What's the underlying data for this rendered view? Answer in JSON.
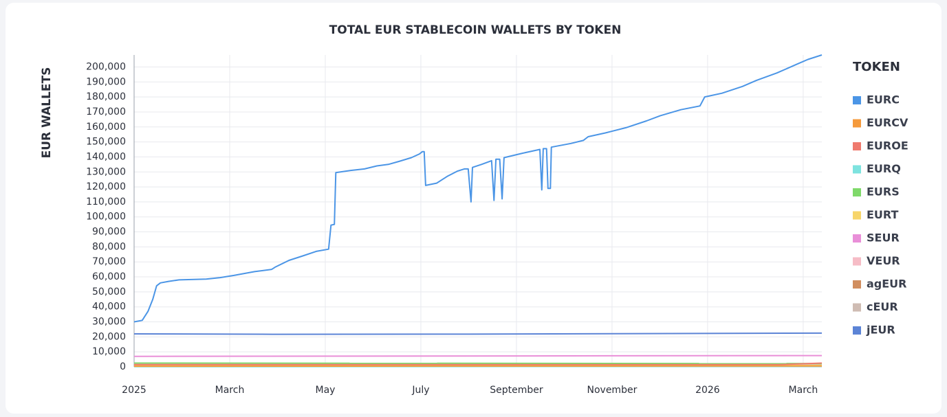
{
  "chart_data": {
    "type": "line",
    "title": "TOTAL EUR STABLECOIN WALLETS BY TOKEN",
    "y_label": "EUR WALLETS",
    "legend_title": "TOKEN",
    "legend": "right",
    "grid": true,
    "xlim": [
      0,
      14.39
    ],
    "xticks": [
      {
        "value": 0,
        "label": "2025"
      },
      {
        "value": 2,
        "label": "March"
      },
      {
        "value": 4,
        "label": "May"
      },
      {
        "value": 6,
        "label": "July"
      },
      {
        "value": 8,
        "label": "September"
      },
      {
        "value": 10,
        "label": "November"
      },
      {
        "value": 12,
        "label": "2026"
      },
      {
        "value": 14,
        "label": "March"
      }
    ],
    "ylim": [
      0,
      208000
    ],
    "yticks": [
      0,
      {
        "value": 10000,
        "label": "10,000"
      },
      {
        "value": 20000,
        "label": "20,000"
      },
      {
        "value": 30000,
        "label": "30,000"
      },
      {
        "value": 40000,
        "label": "40,000"
      },
      {
        "value": 50000,
        "label": "50,000"
      },
      {
        "value": 60000,
        "label": "60,000"
      },
      {
        "value": 70000,
        "label": "70,000"
      },
      {
        "value": 80000,
        "label": "80,000"
      },
      {
        "value": 90000,
        "label": "90,000"
      },
      {
        "value": 100000,
        "label": "100,000"
      },
      {
        "value": 110000,
        "label": "110,000"
      },
      {
        "value": 120000,
        "label": "120,000"
      },
      {
        "value": 130000,
        "label": "130,000"
      },
      {
        "value": 140000,
        "label": "140,000"
      },
      {
        "value": 150000,
        "label": "150,000"
      },
      {
        "value": 160000,
        "label": "160,000"
      },
      {
        "value": 170000,
        "label": "170,000"
      },
      {
        "value": 180000,
        "label": "180,000"
      },
      {
        "value": 190000,
        "label": "190,000"
      },
      {
        "value": 200000,
        "label": "200,000"
      }
    ],
    "series": [
      {
        "name": "EURC",
        "color": "#4b95e6",
        "x": [
          0,
          0.17,
          0.29,
          0.39,
          0.47,
          0.55,
          0.72,
          0.94,
          1.51,
          1.8,
          2.09,
          2.52,
          2.88,
          2.95,
          3.24,
          3.53,
          3.81,
          4.07,
          4.12,
          4.19,
          4.22,
          4.53,
          4.82,
          5.08,
          5.32,
          5.54,
          5.8,
          5.97,
          6.03,
          6.07,
          6.1,
          6.33,
          6.55,
          6.76,
          6.91,
          6.99,
          7.05,
          7.08,
          7.27,
          7.48,
          7.53,
          7.57,
          7.65,
          7.7,
          7.74,
          8.13,
          8.49,
          8.53,
          8.56,
          8.63,
          8.66,
          8.71,
          8.73,
          9.14,
          9.4,
          9.5,
          9.86,
          10.29,
          10.72,
          11.01,
          11.44,
          11.84,
          11.94,
          12.3,
          12.73,
          13.02,
          13.45,
          13.88,
          14.1,
          14.39
        ],
        "values": [
          30000,
          31000,
          37000,
          45000,
          54000,
          56000,
          57000,
          58000,
          58500,
          59500,
          61000,
          63500,
          65000,
          66500,
          71000,
          74000,
          77000,
          78500,
          94500,
          95000,
          129500,
          131000,
          132000,
          134000,
          135000,
          137000,
          139500,
          142000,
          143500,
          143500,
          121000,
          122500,
          127000,
          130500,
          132000,
          132000,
          110000,
          133000,
          135000,
          137500,
          111000,
          138500,
          138500,
          112000,
          139500,
          142500,
          145000,
          118000,
          145500,
          145500,
          119000,
          119000,
          146500,
          149000,
          151000,
          153500,
          156000,
          159500,
          164000,
          167500,
          171500,
          174000,
          180000,
          182500,
          187000,
          191000,
          196000,
          202000,
          205000,
          208000
        ]
      },
      {
        "name": "EURCV",
        "color": "#f59a3c",
        "x": [
          0,
          14.39
        ],
        "values": [
          400,
          600
        ]
      },
      {
        "name": "EUROE",
        "color": "#ef7a6e",
        "x": [
          0,
          13.5,
          14.39
        ],
        "values": [
          1500,
          1500,
          2500
        ]
      },
      {
        "name": "EURQ",
        "color": "#7ee3df",
        "x": [
          0,
          14.39
        ],
        "values": [
          100,
          300
        ]
      },
      {
        "name": "EURS",
        "color": "#7fd96a",
        "x": [
          0,
          14.39
        ],
        "values": [
          2500,
          2200
        ]
      },
      {
        "name": "EURT",
        "color": "#f7d56a",
        "x": [
          0,
          14.39
        ],
        "values": [
          1000,
          900
        ]
      },
      {
        "name": "SEUR",
        "color": "#e98fd8",
        "x": [
          0,
          14.39
        ],
        "values": [
          7000,
          7500
        ]
      },
      {
        "name": "VEUR",
        "color": "#f6bcc6",
        "x": [
          0,
          14.39
        ],
        "values": [
          1800,
          2000
        ]
      },
      {
        "name": "agEUR",
        "color": "#d18e5f",
        "x": [
          0,
          14.39
        ],
        "values": [
          800,
          700
        ]
      },
      {
        "name": "cEUR",
        "color": "#cfbcb3",
        "x": [
          0,
          14.39
        ],
        "values": [
          2000,
          1500
        ]
      },
      {
        "name": "jEUR",
        "color": "#5c84d6",
        "x": [
          0,
          2.9,
          7,
          14.39
        ],
        "values": [
          22000,
          21700,
          21800,
          22500
        ]
      }
    ]
  }
}
